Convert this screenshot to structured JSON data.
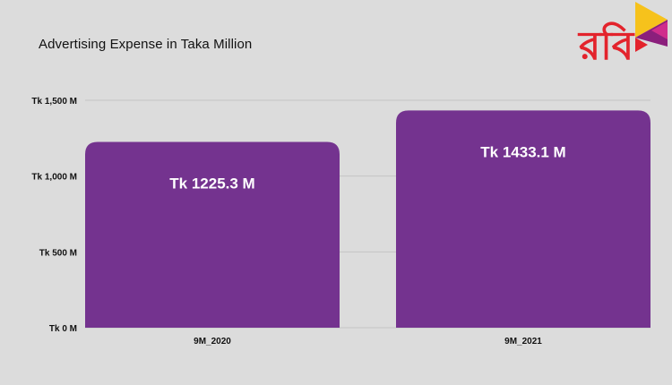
{
  "header": {
    "title": "Advertising Expense in Taka Million"
  },
  "logo": {
    "text": "রবি",
    "icon": "robi-logo-icon"
  },
  "colors": {
    "bar": "#74338f",
    "background": "#dcdcdc",
    "grid": "#c4c4c4",
    "logo_red": "#e3232c"
  },
  "chart_data": {
    "type": "bar",
    "title": "Advertising Expense in Taka Million",
    "categories": [
      "9M_2020",
      "9M_2021"
    ],
    "values": [
      1225.3,
      1433.1
    ],
    "data_labels": [
      "Tk 1225.3 M",
      "Tk 1433.1 M"
    ],
    "y_ticks": [
      0,
      500,
      1000,
      1500
    ],
    "y_tick_labels": [
      "Tk 0 M",
      "Tk 500 M",
      "Tk 1,000 M",
      "Tk 1,500 M"
    ],
    "ylim": [
      0,
      1500
    ],
    "grid": true,
    "legend": "none"
  }
}
